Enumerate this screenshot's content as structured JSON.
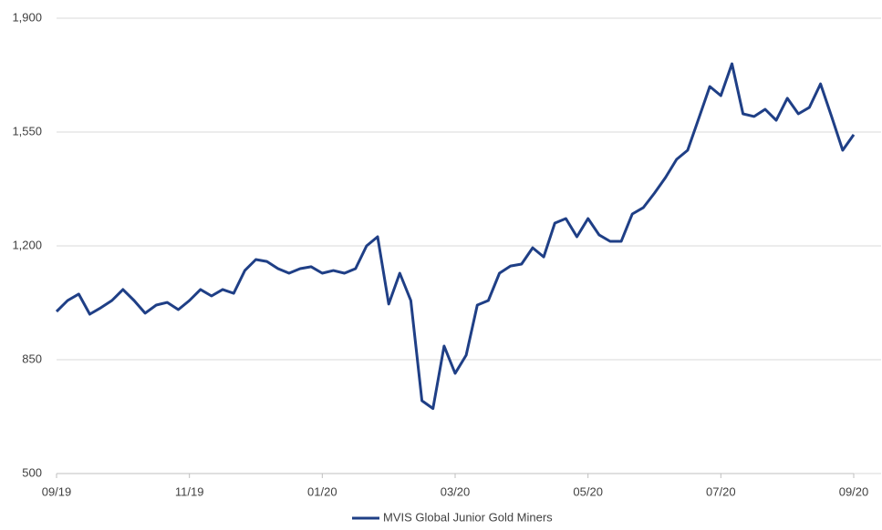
{
  "chart_data": {
    "type": "line",
    "categories": [
      "09/19",
      null,
      null,
      null,
      null,
      null,
      null,
      null,
      null,
      null,
      null,
      null,
      "11/19",
      null,
      null,
      null,
      null,
      null,
      null,
      null,
      null,
      null,
      null,
      null,
      "01/20",
      null,
      null,
      null,
      null,
      null,
      null,
      null,
      null,
      null,
      null,
      null,
      "03/20",
      null,
      null,
      null,
      null,
      null,
      null,
      null,
      null,
      null,
      null,
      null,
      "05/20",
      null,
      null,
      null,
      null,
      null,
      null,
      null,
      null,
      null,
      null,
      null,
      "07/20",
      null,
      null,
      null,
      null,
      null,
      null,
      null,
      null,
      null,
      null,
      null,
      "09/20"
    ],
    "series": [
      {
        "name": "MVIS Global Junior Gold Miners",
        "color": "#1f3f86",
        "values": [
          998,
          1032,
          1052,
          990,
          1010,
          1032,
          1066,
          1032,
          993,
          1018,
          1026,
          1004,
          1032,
          1066,
          1046,
          1066,
          1054,
          1124,
          1158,
          1152,
          1130,
          1116,
          1130,
          1136,
          1116,
          1124,
          1116,
          1130,
          1200,
          1228,
          1021,
          1116,
          1032,
          724,
          700,
          892,
          808,
          864,
          1018,
          1032,
          1116,
          1138,
          1144,
          1194,
          1166,
          1270,
          1284,
          1228,
          1284,
          1234,
          1214,
          1214,
          1298,
          1318,
          1362,
          1410,
          1466,
          1494,
          1592,
          1690,
          1662,
          1760,
          1606,
          1598,
          1620,
          1586,
          1654,
          1606,
          1626,
          1698,
          1598,
          1494,
          1542
        ]
      }
    ],
    "ylim": [
      500,
      1900
    ],
    "yticks": [
      500,
      850,
      {
        "value": 1200,
        "label": "1,200"
      },
      {
        "value": 1550,
        "label": "1,550"
      },
      {
        "value": 1900,
        "label": "1,900"
      }
    ],
    "grid": true,
    "legend": "bottom"
  }
}
